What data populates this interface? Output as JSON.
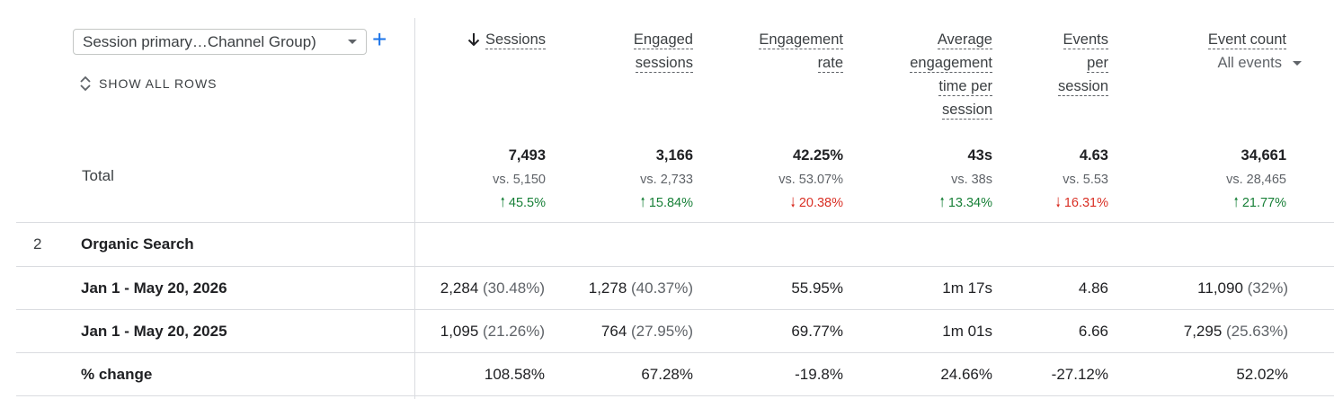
{
  "dimension": {
    "selector_label": "Session primary…Channel Group)",
    "add_label": "+",
    "show_all_rows": "SHOW ALL ROWS"
  },
  "columns": [
    {
      "label": "Sessions",
      "sorted": true
    },
    {
      "label_lines": [
        "Engaged",
        "sessions"
      ]
    },
    {
      "label_lines": [
        "Engagement",
        "rate"
      ]
    },
    {
      "label_lines": [
        "Average",
        "engagement",
        "time per",
        "session"
      ]
    },
    {
      "label_lines": [
        "Events",
        "per",
        "session"
      ]
    },
    {
      "label": "Event count",
      "sub_select": "All events"
    }
  ],
  "total": {
    "label": "Total",
    "values": [
      {
        "value": "7,493",
        "vs": "vs. 5,150",
        "change": "45.5%",
        "direction": "up"
      },
      {
        "value": "3,166",
        "vs": "vs. 2,733",
        "change": "15.84%",
        "direction": "up"
      },
      {
        "value": "42.25%",
        "vs": "vs. 53.07%",
        "change": "20.38%",
        "direction": "down"
      },
      {
        "value": "43s",
        "vs": "vs. 38s",
        "change": "13.34%",
        "direction": "up"
      },
      {
        "value": "4.63",
        "vs": "vs. 5.53",
        "change": "16.31%",
        "direction": "down"
      },
      {
        "value": "34,661",
        "vs": "vs. 28,465",
        "change": "21.77%",
        "direction": "up"
      }
    ]
  },
  "group": {
    "index": "2",
    "name": "Organic Search"
  },
  "rows": [
    {
      "label": "Jan 1 - May 20, 2026",
      "cells": [
        {
          "v": "2,284",
          "p": "(30.48%)"
        },
        {
          "v": "1,278",
          "p": "(40.37%)"
        },
        {
          "v": "55.95%"
        },
        {
          "v": "1m 17s"
        },
        {
          "v": "4.86"
        },
        {
          "v": "11,090",
          "p": "(32%)"
        }
      ]
    },
    {
      "label": "Jan 1 - May 20, 2025",
      "cells": [
        {
          "v": "1,095",
          "p": "(21.26%)"
        },
        {
          "v": "764",
          "p": "(27.95%)"
        },
        {
          "v": "69.77%"
        },
        {
          "v": "1m 01s"
        },
        {
          "v": "6.66"
        },
        {
          "v": "7,295",
          "p": "(25.63%)"
        }
      ]
    },
    {
      "label": "% change",
      "cells": [
        {
          "v": "108.58%"
        },
        {
          "v": "67.28%"
        },
        {
          "v": "-19.8%"
        },
        {
          "v": "24.66%"
        },
        {
          "v": "-27.12%"
        },
        {
          "v": "52.02%"
        }
      ]
    }
  ],
  "colors": {
    "up": "#188038",
    "down": "#d93025",
    "accent": "#1a73e8"
  }
}
